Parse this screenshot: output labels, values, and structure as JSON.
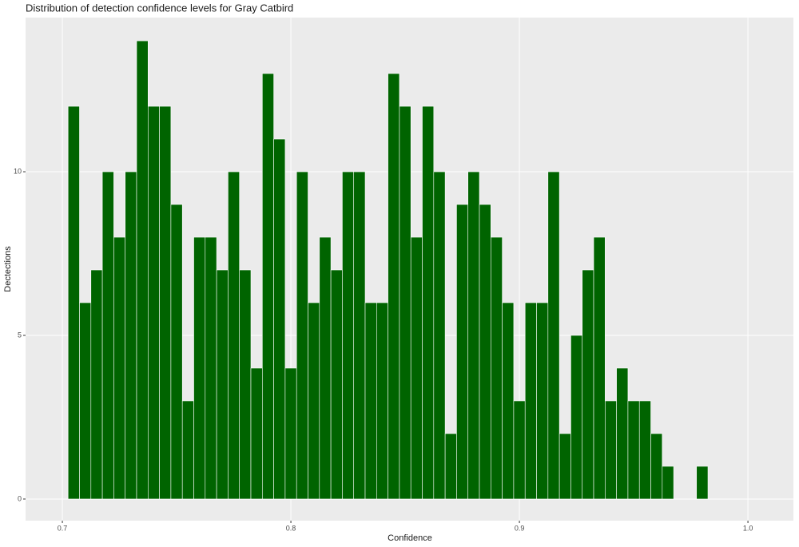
{
  "chart_data": {
    "type": "histogram",
    "title": "Distribution of detection confidence levels for Gray Catbird",
    "x_label": "Confidence",
    "y_label": "Dectections",
    "bins": [
      0.7025,
      0.7075,
      0.7125,
      0.7175,
      0.7225,
      0.7275,
      0.7325,
      0.7375,
      0.7425,
      0.7475,
      0.7525,
      0.7575,
      0.7625,
      0.7675,
      0.7725,
      0.7775,
      0.7825,
      0.7875,
      0.7925,
      0.7975,
      0.8025,
      0.8075,
      0.8125,
      0.8175,
      0.8225,
      0.8275,
      0.8325,
      0.8375,
      0.8425,
      0.8475,
      0.8525,
      0.8575,
      0.8625,
      0.8675,
      0.8725,
      0.8775,
      0.8825,
      0.8875,
      0.8925,
      0.8975,
      0.9025,
      0.9075,
      0.9125,
      0.9175,
      0.9225,
      0.9275,
      0.9325,
      0.9375,
      0.9425,
      0.9475,
      0.9525,
      0.9575,
      0.9625,
      0.9675,
      0.9725,
      0.9775,
      0.9825
    ],
    "values": [
      12,
      6,
      7,
      10,
      8,
      10,
      14,
      12,
      12,
      9,
      3,
      8,
      8,
      7,
      10,
      7,
      4,
      13,
      11,
      4,
      10,
      6,
      8,
      7,
      10,
      10,
      6,
      6,
      13,
      12,
      8,
      12,
      10,
      2,
      9,
      10,
      9,
      8,
      6,
      3,
      6,
      6,
      10,
      2,
      5,
      7,
      8,
      3,
      4,
      3,
      3,
      2,
      1,
      0,
      0,
      1
    ],
    "color": "#006400",
    "xlim": [
      0.6839,
      1.0199
    ],
    "ylim": [
      -0.66,
      14.71
    ],
    "xticks": [
      0.7,
      0.8,
      0.9,
      {
        "value": 1.0,
        "label": "1.0"
      }
    ],
    "yticks": [
      0,
      5,
      10
    ],
    "grid": true
  }
}
